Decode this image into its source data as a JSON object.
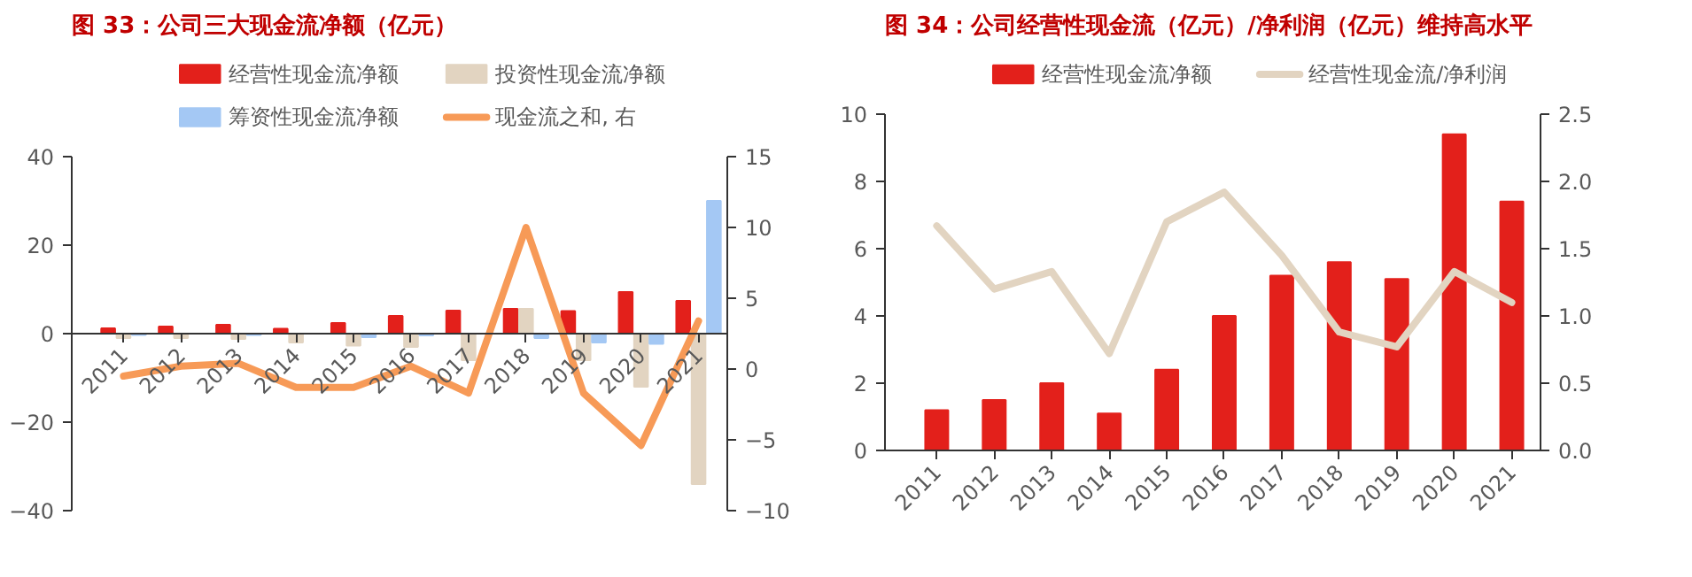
{
  "chart_data": [
    {
      "type": "bar",
      "title": "图 33：公司三大现金流净额（亿元）",
      "categories": [
        "2011",
        "2012",
        "2013",
        "2014",
        "2015",
        "2016",
        "2017",
        "2018",
        "2019",
        "2020",
        "2021"
      ],
      "series": [
        {
          "name": "经营性现金流净额",
          "color": "#e3201b",
          "values": [
            1.2,
            1.6,
            2.0,
            1.1,
            2.4,
            4.0,
            5.2,
            5.6,
            5.1,
            9.4,
            7.4
          ]
        },
        {
          "name": "投资性现金流净额",
          "color": "#e2d4c1",
          "values": [
            -1.0,
            -1.0,
            -1.2,
            -2.0,
            -2.7,
            -3.0,
            -6.0,
            5.6,
            -6.0,
            -12.0,
            -34.0
          ]
        },
        {
          "name": "筹资性现金流净额",
          "color": "#a4c8f4",
          "values": [
            -0.3,
            null,
            -0.3,
            null,
            -0.8,
            -0.4,
            null,
            -1.0,
            -2.0,
            -2.3,
            30.0
          ]
        },
        {
          "name": "现金流之和, 右",
          "type": "line",
          "axis": "y2",
          "color": "#f79a57",
          "values": [
            -0.5,
            0.2,
            0.4,
            -1.3,
            -1.3,
            0.2,
            -1.7,
            10.0,
            -1.7,
            -5.4,
            3.4
          ]
        }
      ],
      "ylim": [
        -40,
        40
      ],
      "yticks": [
        -40,
        -20,
        0,
        20,
        40
      ],
      "y2lim": [
        -10,
        15
      ],
      "y2ticks": [
        -10,
        -5,
        0,
        5,
        10,
        15
      ],
      "legend": "top",
      "grid": false
    },
    {
      "type": "bar",
      "title": "图 34：公司经营性现金流（亿元）/净利润（亿元）维持高水平",
      "categories": [
        "2011",
        "2012",
        "2013",
        "2014",
        "2015",
        "2016",
        "2017",
        "2018",
        "2019",
        "2020",
        "2021"
      ],
      "series": [
        {
          "name": "经营性现金流净额",
          "color": "#e3201b",
          "values": [
            1.2,
            1.5,
            2.0,
            1.1,
            2.4,
            4.0,
            5.2,
            5.6,
            5.1,
            9.4,
            7.4
          ]
        },
        {
          "name": "经营性现金流/净利润",
          "type": "line",
          "axis": "y2",
          "color": "#e2d4c1",
          "values": [
            1.67,
            1.2,
            1.33,
            0.72,
            1.7,
            1.92,
            1.45,
            0.88,
            0.77,
            1.33,
            1.1
          ]
        }
      ],
      "ylim": [
        0,
        10
      ],
      "yticks": [
        0,
        2,
        4,
        6,
        8,
        10
      ],
      "y2lim": [
        0,
        2.5
      ],
      "y2ticks": [
        {
          "value": 0,
          "label": "0.0"
        },
        {
          "value": 0.5,
          "label": "0.5"
        },
        {
          "value": 1,
          "label": "1.0"
        },
        {
          "value": 1.5,
          "label": "1.5"
        },
        {
          "value": 2,
          "label": "2.0"
        },
        {
          "value": 2.5,
          "label": "2.5"
        }
      ],
      "legend": "top",
      "grid": false
    }
  ]
}
